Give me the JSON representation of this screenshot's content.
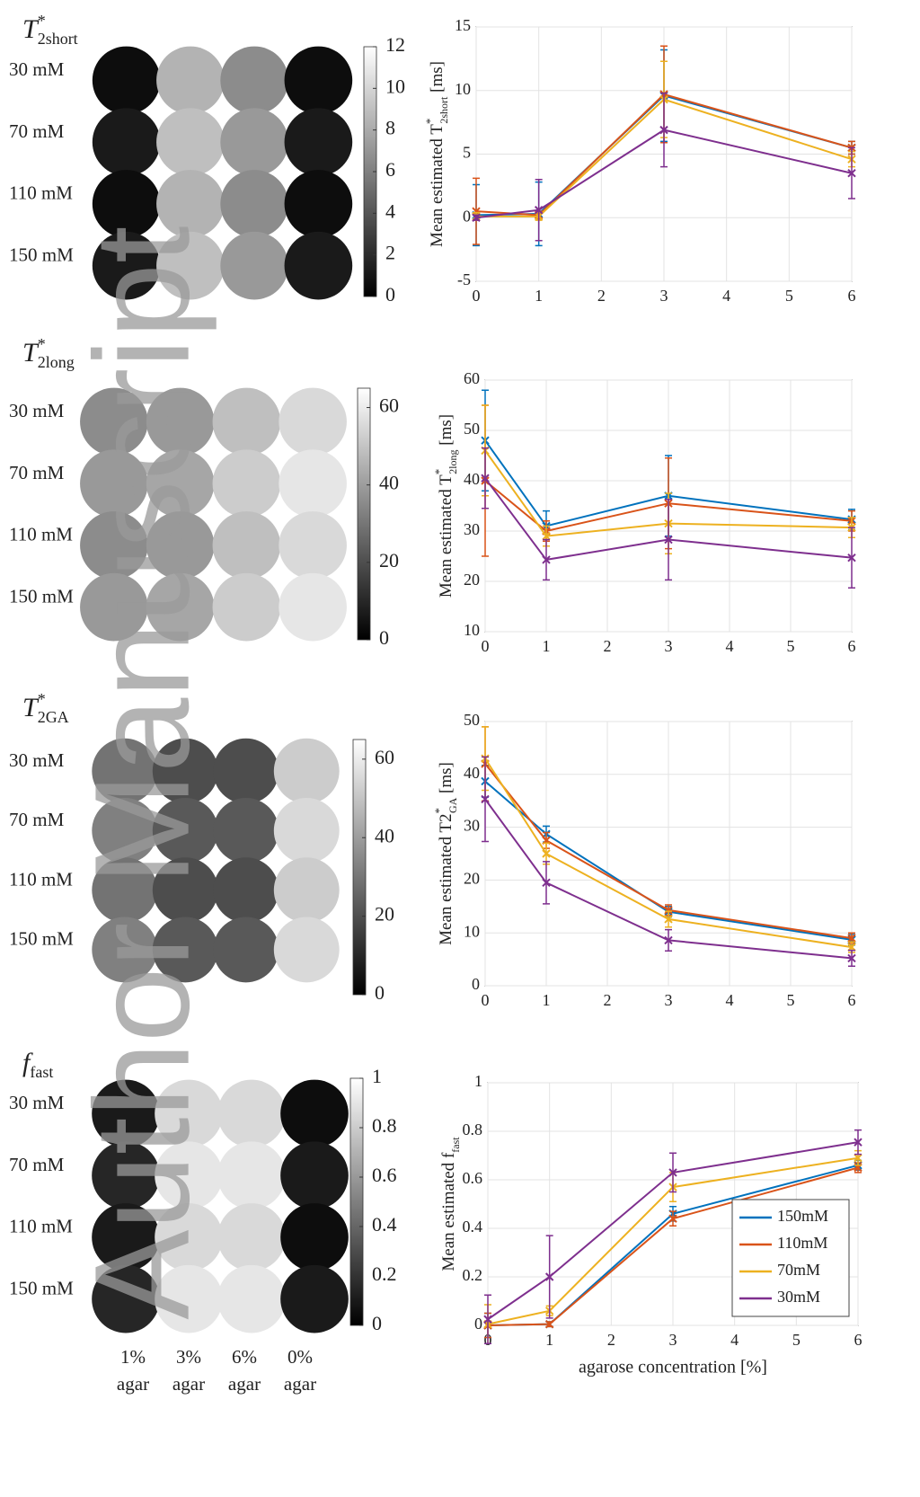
{
  "watermark": "Author Manuscript",
  "maps": [
    {
      "title": {
        "base": "T",
        "sup": "*",
        "sub": "2short"
      },
      "rows": [
        "30 mM",
        "70 mM",
        "110 mM",
        "150 mM"
      ],
      "cblim": [
        0,
        12
      ],
      "cbticks": [
        0,
        2,
        4,
        6,
        8,
        10,
        12
      ]
    },
    {
      "title": {
        "base": "T",
        "sup": "*",
        "sub": "2long"
      },
      "rows": [
        "30 mM",
        "70 mM",
        "110 mM",
        "150 mM"
      ],
      "cblim": [
        0,
        65
      ],
      "cbticks": [
        0,
        20,
        40,
        60
      ]
    },
    {
      "title": {
        "base": "T",
        "sup": "*",
        "sub": "2GA"
      },
      "rows": [
        "30 mM",
        "70 mM",
        "110 mM",
        "150 mM"
      ],
      "cblim": [
        0,
        65
      ],
      "cbticks": [
        0,
        20,
        40,
        60
      ]
    },
    {
      "title": {
        "base": "f",
        "sub": "fast"
      },
      "rows": [
        "30 mM",
        "70 mM",
        "110 mM",
        "150 mM"
      ],
      "cblim": [
        0,
        1
      ],
      "cbticks": [
        0,
        0.2,
        0.4,
        0.6,
        0.8,
        1
      ],
      "columns": [
        [
          "1%",
          "agar"
        ],
        [
          "3%",
          "agar"
        ],
        [
          "6%",
          "agar"
        ],
        [
          "0%",
          "agar"
        ]
      ]
    }
  ],
  "chart_data": [
    {
      "type": "line",
      "y_label": {
        "text": "Mean estimated ",
        "base": "T",
        "sup": "*",
        "sub": "2short",
        "unit": " [ms]"
      },
      "x": [
        0,
        1,
        3,
        6
      ],
      "xlim": [
        0,
        6
      ],
      "xticks": [
        0,
        1,
        2,
        3,
        4,
        5,
        6
      ],
      "ylim": [
        -5,
        15
      ],
      "yticks": [
        -5,
        0,
        5,
        10,
        15
      ],
      "grid": true,
      "series": [
        {
          "color": "#0072bd",
          "values": [
            0.2,
            0.3,
            9.6,
            5.5
          ],
          "errors": [
            2.4,
            2.5,
            3.6,
            0.5
          ]
        },
        {
          "color": "#d95319",
          "values": [
            0.5,
            0.2,
            9.7,
            5.5
          ],
          "errors": [
            2.6,
            0.3,
            3.8,
            0.5
          ]
        },
        {
          "color": "#edb120",
          "values": [
            0.1,
            0.1,
            9.3,
            4.6
          ],
          "errors": [
            0.3,
            0.3,
            3.0,
            0.6
          ]
        },
        {
          "color": "#7e2f8e",
          "values": [
            0,
            0.6,
            6.9,
            3.5
          ],
          "errors": [
            0.2,
            2.4,
            2.9,
            2.0
          ]
        }
      ]
    },
    {
      "type": "line",
      "y_label": {
        "text": "Mean estimated ",
        "base": "T",
        "sup": "*",
        "sub": "2long",
        "unit": " [ms]"
      },
      "x": [
        0,
        1,
        3,
        6
      ],
      "xlim": [
        0,
        6
      ],
      "xticks": [
        0,
        1,
        2,
        3,
        4,
        5,
        6
      ],
      "ylim": [
        10,
        60
      ],
      "yticks": [
        10,
        20,
        30,
        40,
        50,
        60
      ],
      "grid": true,
      "series": [
        {
          "color": "#0072bd",
          "values": [
            48,
            31,
            37,
            32.3
          ],
          "errors": [
            10,
            3,
            8,
            2
          ]
        },
        {
          "color": "#d95319",
          "values": [
            40,
            30,
            35.5,
            32
          ],
          "errors": [
            15,
            2,
            9,
            2
          ]
        },
        {
          "color": "#edb120",
          "values": [
            46,
            29,
            31.5,
            30.7
          ],
          "errors": [
            9,
            2,
            6,
            2
          ]
        },
        {
          "color": "#7e2f8e",
          "values": [
            40.5,
            24.3,
            28.3,
            24.7
          ],
          "errors": [
            6,
            4,
            8,
            6
          ]
        }
      ]
    },
    {
      "type": "line",
      "y_label": {
        "text": "Mean estimated ",
        "base": "T2",
        "sup": "*",
        "sub": "GA",
        "unit": " [ms]"
      },
      "x": [
        0,
        1,
        3,
        6
      ],
      "xlim": [
        0,
        6
      ],
      "xticks": [
        0,
        1,
        2,
        3,
        4,
        5,
        6
      ],
      "ylim": [
        0,
        50
      ],
      "yticks": [
        0,
        10,
        20,
        30,
        40,
        50
      ],
      "grid": true,
      "series": [
        {
          "color": "#0072bd",
          "values": [
            38.7,
            28.7,
            14,
            8.7
          ],
          "errors": [
            3,
            1.5,
            1,
            1
          ]
        },
        {
          "color": "#d95319",
          "values": [
            42,
            27.5,
            14.3,
            9
          ],
          "errors": [
            7,
            1.5,
            1,
            1
          ]
        },
        {
          "color": "#edb120",
          "values": [
            43,
            25,
            12.6,
            7.3
          ],
          "errors": [
            6,
            2,
            1.5,
            1
          ]
        },
        {
          "color": "#7e2f8e",
          "values": [
            35.3,
            19.5,
            8.6,
            5.2
          ],
          "errors": [
            8,
            4,
            2,
            1.5
          ]
        }
      ]
    },
    {
      "type": "line",
      "y_label": {
        "text": "Mean estimated ",
        "base": "f",
        "sub": "fast"
      },
      "x_label": "agarose concentration [%]",
      "x": [
        0,
        1,
        3,
        6
      ],
      "xlim": [
        0,
        6
      ],
      "xticks": [
        0,
        1,
        2,
        3,
        4,
        5,
        6
      ],
      "ylim": [
        0,
        1
      ],
      "yticks": [
        0,
        0.2,
        0.4,
        0.6,
        0.8,
        1
      ],
      "grid": true,
      "legend": "lower-right",
      "series": [
        {
          "name": "150mM",
          "color": "#0072bd",
          "values": [
            0,
            0.005,
            0.46,
            0.66
          ],
          "errors": [
            0.05,
            0.01,
            0.03,
            0.02
          ]
        },
        {
          "name": "110mM",
          "color": "#d95319",
          "values": [
            0,
            0.005,
            0.44,
            0.65
          ],
          "errors": [
            0.05,
            0.01,
            0.03,
            0.02
          ]
        },
        {
          "name": "70mM",
          "color": "#edb120",
          "values": [
            0.005,
            0.06,
            0.57,
            0.69
          ],
          "errors": [
            0.08,
            0.02,
            0.06,
            0.03
          ]
        },
        {
          "name": "30mM",
          "color": "#7e2f8e",
          "values": [
            0.025,
            0.2,
            0.63,
            0.755
          ],
          "errors": [
            0.1,
            0.17,
            0.08,
            0.05
          ]
        }
      ]
    }
  ]
}
